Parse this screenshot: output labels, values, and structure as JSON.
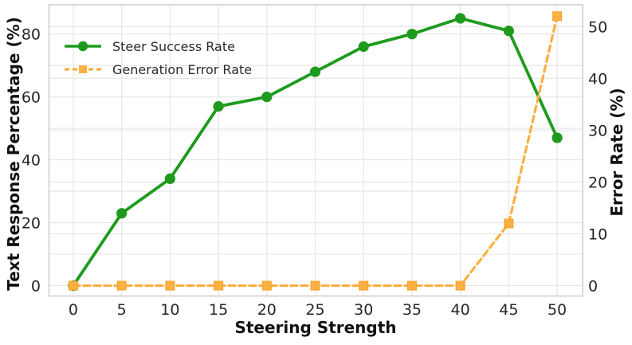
{
  "chart_data": {
    "type": "line",
    "title": "",
    "xlabel": "Steering Strength",
    "ylabel_left": "Text Response Percentage (%)",
    "ylabel_right": "Error Rate (%)",
    "x": [
      0,
      5,
      10,
      15,
      20,
      25,
      30,
      35,
      40,
      45,
      50
    ],
    "xticks": [
      0,
      5,
      10,
      15,
      20,
      25,
      30,
      35,
      40,
      45,
      50
    ],
    "yticks_left": [
      0,
      20,
      40,
      60,
      80
    ],
    "yticks_right": [
      0,
      10,
      20,
      30,
      40,
      50
    ],
    "xlim": [
      -2.51,
      52.63
    ],
    "ylim_left": [
      -3.3,
      89.3
    ],
    "ylim_right": [
      -2.0,
      54.2
    ],
    "grid": true,
    "legend_position": "upper-left",
    "series": [
      {
        "name": "Steer Success Rate",
        "axis": "left",
        "color": "#1e9b1e",
        "linestyle": "solid",
        "marker": "circle",
        "values": [
          0,
          23,
          34,
          57,
          60,
          68,
          76,
          80,
          85,
          81,
          47
        ]
      },
      {
        "name": "Generation Error Rate",
        "axis": "right",
        "color": "#fbb042",
        "linestyle": "dashed",
        "marker": "square",
        "values": [
          0,
          0,
          0,
          0,
          0,
          0,
          0,
          0,
          0,
          12,
          52
        ]
      }
    ]
  },
  "style": {
    "grid_color": "#e4e4e4",
    "spine_color": "#c9c9c9",
    "tick_color": "#262626",
    "background": "#ffffff",
    "line_width_solid": 3.8,
    "line_width_dashed": 3.2,
    "dash_pattern": "8 5",
    "marker_radius": 6.6,
    "square_size": 11
  }
}
